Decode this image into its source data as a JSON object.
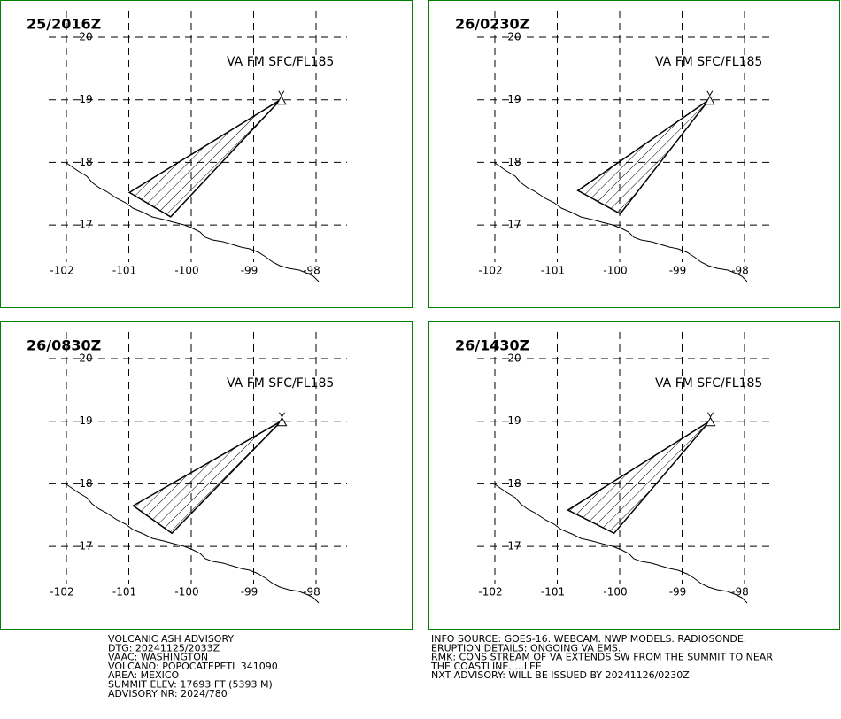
{
  "panels": [
    {
      "time": "25/2016Z",
      "layer": "VA FM SFC/FL185",
      "ash_area": [
        [
          -98.57,
          19.0
        ],
        [
          -100.99,
          17.52
        ],
        [
          -100.33,
          17.13
        ]
      ]
    },
    {
      "time": "26/0230Z",
      "layer": "VA FM SFC/FL185",
      "ash_area": [
        [
          -98.57,
          19.0
        ],
        [
          -100.67,
          17.55
        ],
        [
          -99.99,
          17.18
        ]
      ]
    },
    {
      "time": "26/0830Z",
      "layer": "VA FM SFC/FL185",
      "ash_area": [
        [
          -98.56,
          19.0
        ],
        [
          -100.93,
          17.65
        ],
        [
          -100.31,
          17.21
        ]
      ]
    },
    {
      "time": "26/1430Z",
      "layer": "VA FM SFC/FL185",
      "ash_area": [
        [
          -98.56,
          19.0
        ],
        [
          -100.83,
          17.58
        ],
        [
          -100.09,
          17.21
        ]
      ]
    }
  ],
  "lat_ticks": [
    20,
    19,
    18,
    17
  ],
  "lon_ticks": [
    -102,
    -101,
    -100,
    -99,
    -98
  ],
  "advisory_left": [
    "VOLCANIC ASH ADVISORY",
    "DTG: 20241125/2033Z",
    "VAAC: WASHINGTON",
    "VOLCANO: POPOCATEPETL 341090",
    "AREA: MEXICO",
    "SUMMIT ELEV: 17693 FT (5393 M)",
    "ADVISORY NR: 2024/780"
  ],
  "advisory_right": [
    "INFO SOURCE: GOES-16. WEBCAM. NWP MODELS. RADIOSONDE.",
    "ERUPTION DETAILS: ONGOING VA EMS.",
    "RMK: CONS STREAM OF VA EXTENDS SW FROM THE SUMMIT TO NEAR",
    "THE COASTLINE. ...LEE",
    "NXT ADVISORY: WILL BE ISSUED BY 20241126/0230Z"
  ]
}
